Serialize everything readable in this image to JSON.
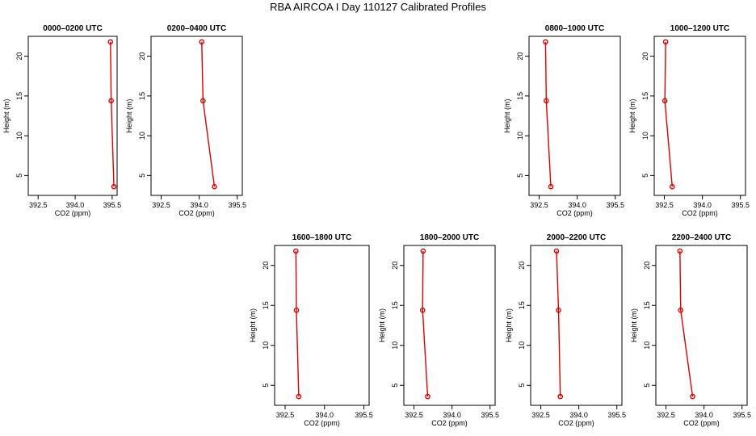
{
  "title": "RBA AIRCOA I  Day 110127  Calibrated Profiles",
  "chart_data": [
    {
      "type": "line",
      "title": "0000–0200 UTC",
      "xlabel": "CO2 (ppm)",
      "ylabel": "Height (m)",
      "xlim": [
        392.1,
        395.7
      ],
      "ylim": [
        2.5,
        22.5
      ],
      "xticks": [
        392.5,
        394.0,
        395.5
      ],
      "xtick_labels": [
        "392.5",
        "394.0",
        "395.5"
      ],
      "yticks": [
        5,
        10,
        15,
        20
      ],
      "ytick_labels": [
        "5",
        "10",
        "15",
        "20"
      ],
      "x": [
        395.43,
        395.46,
        395.57
      ],
      "y": [
        21.8,
        14.4,
        3.6
      ]
    },
    {
      "type": "line",
      "title": "0200–0400 UTC",
      "xlabel": "CO2 (ppm)",
      "ylabel": "Height (m)",
      "xlim": [
        392.1,
        395.7
      ],
      "ylim": [
        2.5,
        22.5
      ],
      "xticks": [
        392.5,
        394.0,
        395.5
      ],
      "xtick_labels": [
        "392.5",
        "394.0",
        "395.5"
      ],
      "yticks": [
        5,
        10,
        15,
        20
      ],
      "ytick_labels": [
        "5",
        "10",
        "15",
        "20"
      ],
      "x": [
        394.1,
        394.15,
        394.6
      ],
      "y": [
        21.8,
        14.4,
        3.6
      ]
    },
    {
      "type": "line",
      "title": "0800–1000 UTC",
      "xlabel": "CO2 (ppm)",
      "ylabel": "Height (m)",
      "xlim": [
        392.1,
        395.7
      ],
      "ylim": [
        2.5,
        22.5
      ],
      "xticks": [
        392.5,
        394.0,
        395.5
      ],
      "xtick_labels": [
        "392.5",
        "394.0",
        "395.5"
      ],
      "yticks": [
        5,
        10,
        15,
        20
      ],
      "ytick_labels": [
        "5",
        "10",
        "15",
        "20"
      ],
      "x": [
        392.75,
        392.78,
        392.96
      ],
      "y": [
        21.8,
        14.4,
        3.6
      ]
    },
    {
      "type": "line",
      "title": "1000–1200 UTC",
      "xlabel": "CO2 (ppm)",
      "ylabel": "Height (m)",
      "xlim": [
        392.1,
        395.7
      ],
      "ylim": [
        2.5,
        22.5
      ],
      "xticks": [
        392.5,
        394.0,
        395.5
      ],
      "xtick_labels": [
        "392.5",
        "394.0",
        "395.5"
      ],
      "yticks": [
        5,
        10,
        15,
        20
      ],
      "ytick_labels": [
        "5",
        "10",
        "15",
        "20"
      ],
      "x": [
        392.55,
        392.52,
        392.81
      ],
      "y": [
        21.8,
        14.4,
        3.6
      ]
    },
    {
      "type": "line",
      "title": "1600–1800 UTC",
      "xlabel": "CO2 (ppm)",
      "ylabel": "Height (m)",
      "xlim": [
        392.1,
        395.7
      ],
      "ylim": [
        2.5,
        22.5
      ],
      "xticks": [
        392.5,
        394.0,
        395.5
      ],
      "xtick_labels": [
        "392.5",
        "394.0",
        "395.5"
      ],
      "yticks": [
        5,
        10,
        15,
        20
      ],
      "ytick_labels": [
        "5",
        "10",
        "15",
        "20"
      ],
      "x": [
        392.91,
        392.93,
        393.02
      ],
      "y": [
        21.8,
        14.4,
        3.6
      ]
    },
    {
      "type": "line",
      "title": "1800–2000 UTC",
      "xlabel": "CO2 (ppm)",
      "ylabel": "Height (m)",
      "xlim": [
        392.1,
        395.7
      ],
      "ylim": [
        2.5,
        22.5
      ],
      "xticks": [
        392.5,
        394.0,
        395.5
      ],
      "xtick_labels": [
        "392.5",
        "394.0",
        "395.5"
      ],
      "yticks": [
        5,
        10,
        15,
        20
      ],
      "ytick_labels": [
        "5",
        "10",
        "15",
        "20"
      ],
      "x": [
        392.86,
        392.84,
        393.04
      ],
      "y": [
        21.8,
        14.4,
        3.6
      ]
    },
    {
      "type": "line",
      "title": "2000–2200 UTC",
      "xlabel": "CO2 (ppm)",
      "ylabel": "Height (m)",
      "xlim": [
        392.1,
        395.7
      ],
      "ylim": [
        2.5,
        22.5
      ],
      "xticks": [
        392.5,
        394.0,
        395.5
      ],
      "xtick_labels": [
        "392.5",
        "394.0",
        "395.5"
      ],
      "yticks": [
        5,
        10,
        15,
        20
      ],
      "ytick_labels": [
        "5",
        "10",
        "15",
        "20"
      ],
      "x": [
        393.12,
        393.2,
        393.27
      ],
      "y": [
        21.8,
        14.4,
        3.6
      ]
    },
    {
      "type": "line",
      "title": "2200–2400 UTC",
      "xlabel": "CO2 (ppm)",
      "ylabel": "Height (m)",
      "xlim": [
        392.1,
        395.7
      ],
      "ylim": [
        2.5,
        22.5
      ],
      "xticks": [
        392.5,
        394.0,
        395.5
      ],
      "xtick_labels": [
        "392.5",
        "394.0",
        "395.5"
      ],
      "yticks": [
        5,
        10,
        15,
        20
      ],
      "ytick_labels": [
        "5",
        "10",
        "15",
        "20"
      ],
      "x": [
        393.05,
        393.08,
        393.55
      ],
      "y": [
        21.8,
        14.4,
        3.6
      ]
    }
  ]
}
